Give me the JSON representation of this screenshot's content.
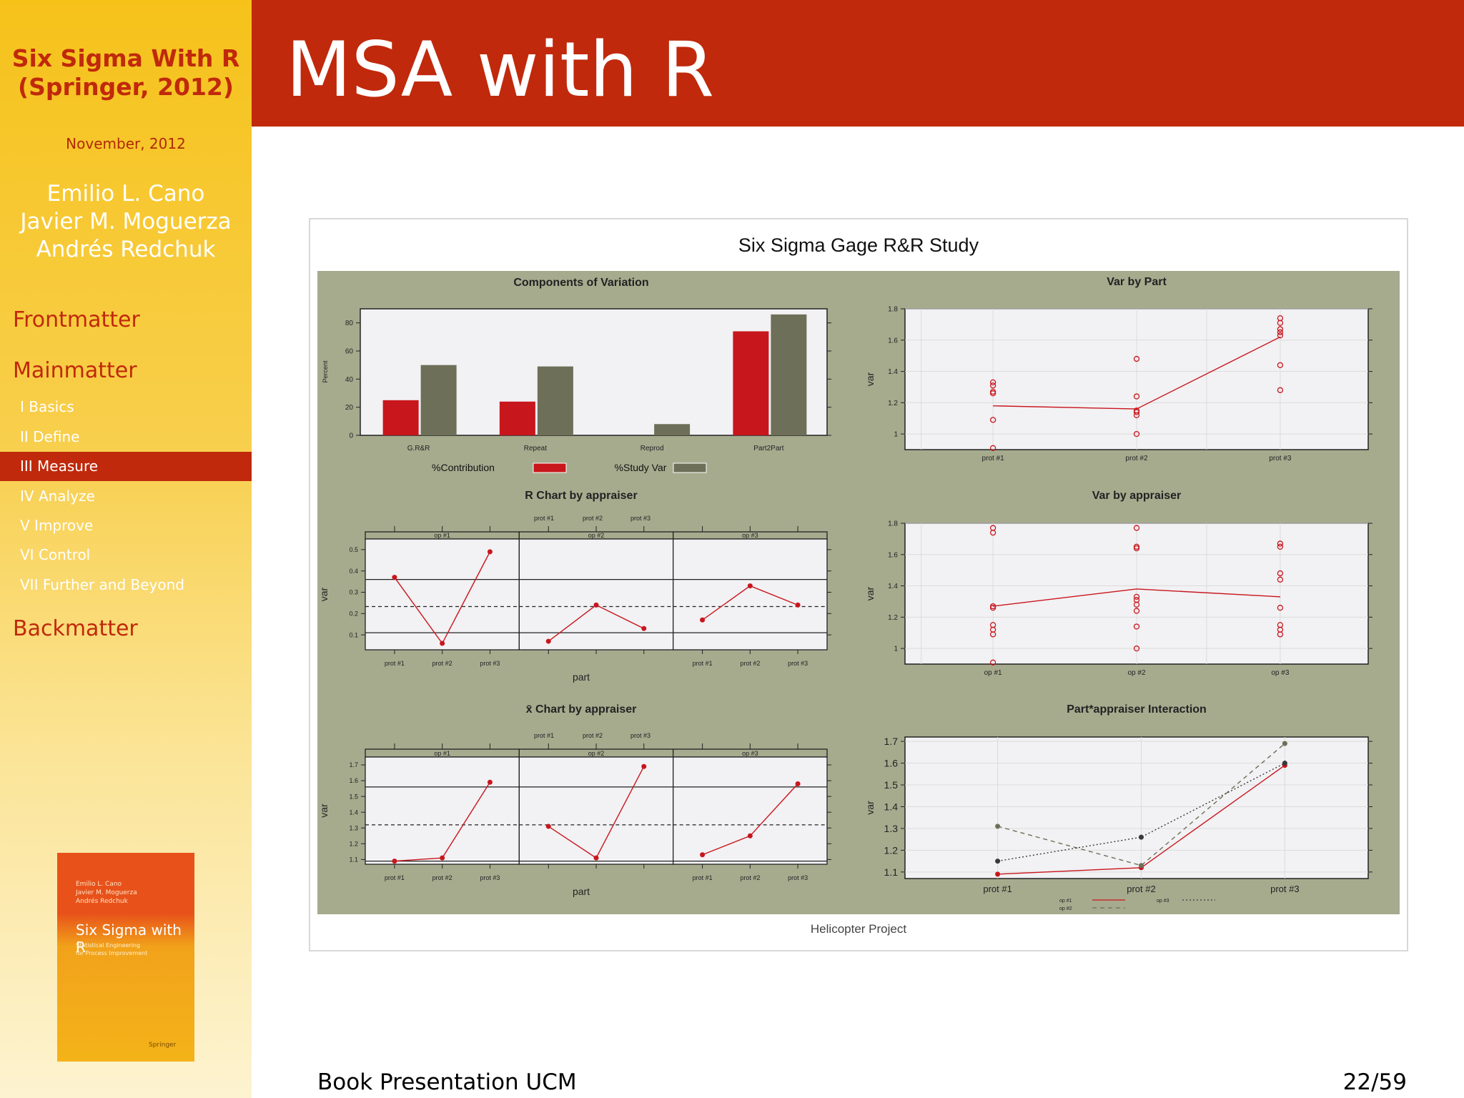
{
  "sidebar": {
    "title_line1": "Six Sigma With R",
    "title_line2": "(Springer, 2012)",
    "date": "November, 2012",
    "authors": [
      "Emilio L. Cano",
      "Javier M. Moguerza",
      "Andrés Redchuk"
    ],
    "sections": [
      "Frontmatter",
      "Mainmatter",
      "Backmatter"
    ],
    "subsections": [
      "I Basics",
      "II Define",
      "III Measure",
      "IV Analyze",
      "V Improve",
      "VI Control",
      "VII Further and Beyond"
    ],
    "active_subsection": "III Measure",
    "book": {
      "authors": [
        "Emilio L. Cano",
        "Javier M. Moguerza",
        "Andrés Redchuk"
      ],
      "title": "Six Sigma with R",
      "subtitle": [
        "Statistical Engineering",
        "for Process Improvement"
      ],
      "publisher": "Springer"
    }
  },
  "header": {
    "title": "MSA with R"
  },
  "footer": {
    "left": "Book Presentation UCM",
    "page": "22/59"
  },
  "figure": {
    "title": "Six Sigma Gage R&R Study",
    "caption": "Helicopter Project",
    "colors": {
      "panel_bg": "#a7ab8e",
      "plot_bg": "#f2f1f3",
      "red": "#c8161d",
      "gray": "#6d6f58"
    }
  },
  "chart_data": [
    {
      "type": "bar",
      "title": "Components of Variation",
      "ylabel": "Percent",
      "xlabel": "",
      "categories": [
        "G.R&R",
        "Repeat",
        "Reprod",
        "Part2Part"
      ],
      "series": [
        {
          "name": "%Contribution",
          "values": [
            25,
            24,
            0,
            74
          ]
        },
        {
          "name": "%Study Var",
          "values": [
            50,
            49,
            8,
            86
          ]
        }
      ],
      "ylim": [
        0,
        90
      ],
      "yticks": [
        0,
        20,
        40,
        60,
        80
      ]
    },
    {
      "type": "scatter",
      "title": "Var by Part",
      "ylabel": "var",
      "categories": [
        "prot #1",
        "prot #2",
        "prot #3"
      ],
      "points": [
        [
          0.91,
          1.09,
          1.26,
          1.27,
          1.31,
          1.33
        ],
        [
          1.0,
          1.12,
          1.14,
          1.15,
          1.24,
          1.48
        ],
        [
          1.28,
          1.44,
          1.63,
          1.65,
          1.67,
          1.71,
          1.74
        ]
      ],
      "means": [
        1.18,
        1.16,
        1.62
      ],
      "ylim": [
        0.9,
        1.8
      ],
      "yticks": [
        1.0,
        1.2,
        1.4,
        1.6,
        1.8
      ]
    },
    {
      "type": "line",
      "title": "R Chart by appraiser",
      "ylabel": "var",
      "xlabel": "part",
      "top_ticks": [
        "prot #1",
        "prot #2",
        "prot #3"
      ],
      "categories": [
        "prot #1",
        "prot #2",
        "prot #3"
      ],
      "panels": [
        {
          "name": "op #1",
          "values": [
            0.37,
            0.06,
            0.49
          ]
        },
        {
          "name": "op #2",
          "values": [
            0.07,
            0.24,
            0.13
          ]
        },
        {
          "name": "op #3",
          "values": [
            0.17,
            0.33,
            0.24
          ]
        }
      ],
      "center": 0.233,
      "limits": [
        0.11,
        0.36
      ],
      "ylim": [
        0.03,
        0.55
      ],
      "yticks": [
        0.1,
        0.2,
        0.3,
        0.4,
        0.5
      ]
    },
    {
      "type": "scatter",
      "title": "Var by appraiser",
      "ylabel": "var",
      "categories": [
        "op #1",
        "op #2",
        "op #3"
      ],
      "points": [
        [
          0.91,
          1.09,
          1.12,
          1.15,
          1.26,
          1.27,
          1.74,
          1.77
        ],
        [
          1.0,
          1.14,
          1.24,
          1.28,
          1.31,
          1.33,
          1.64,
          1.65,
          1.77
        ],
        [
          1.09,
          1.12,
          1.15,
          1.26,
          1.44,
          1.48,
          1.65,
          1.67
        ]
      ],
      "means": [
        1.27,
        1.38,
        1.33
      ],
      "ylim": [
        0.9,
        1.8
      ],
      "yticks": [
        1.0,
        1.2,
        1.4,
        1.6,
        1.8
      ]
    },
    {
      "type": "line",
      "title": "x̄ Chart by appraiser",
      "ylabel": "var",
      "xlabel": "part",
      "top_ticks": [
        "prot #1",
        "prot #2",
        "prot #3"
      ],
      "categories": [
        "prot #1",
        "prot #2",
        "prot #3"
      ],
      "panels": [
        {
          "name": "op #1",
          "values": [
            1.09,
            1.11,
            1.59
          ]
        },
        {
          "name": "op #2",
          "values": [
            1.31,
            1.11,
            1.69
          ]
        },
        {
          "name": "op #3",
          "values": [
            1.13,
            1.25,
            1.58
          ]
        }
      ],
      "center": 1.32,
      "limits": [
        1.09,
        1.56
      ],
      "ylim": [
        1.07,
        1.75
      ],
      "yticks": [
        1.1,
        1.2,
        1.3,
        1.4,
        1.5,
        1.6,
        1.7
      ]
    },
    {
      "type": "line",
      "title": "Part*appraiser Interaction",
      "ylabel": "var",
      "categories": [
        "prot #1",
        "prot #2",
        "prot #3"
      ],
      "series": [
        {
          "name": "op #1",
          "values": [
            1.09,
            1.12,
            1.59
          ],
          "color": "#c8161d",
          "dash": ""
        },
        {
          "name": "op #2",
          "values": [
            1.31,
            1.13,
            1.69
          ],
          "color": "#6d6f58",
          "dash": "6,5"
        },
        {
          "name": "op #3",
          "values": [
            1.15,
            1.26,
            1.6
          ],
          "color": "#3a3a3a",
          "dash": "2,3"
        }
      ],
      "ylim": [
        1.07,
        1.72
      ],
      "yticks": [
        1.1,
        1.2,
        1.3,
        1.4,
        1.5,
        1.6,
        1.7
      ]
    }
  ]
}
